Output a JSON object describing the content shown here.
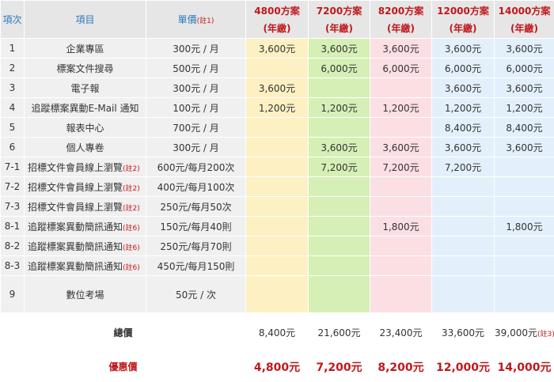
{
  "header": {
    "no": "項次",
    "item": "項目",
    "price": "單價",
    "price_note": "(註1)",
    "plans": [
      {
        "name": "4800方案",
        "sub": "(年繳)"
      },
      {
        "name": "7200方案",
        "sub": "(年繳)"
      },
      {
        "name": "8200方案",
        "sub": "(年繳)"
      },
      {
        "name": "12000方案",
        "sub": "(年繳)"
      },
      {
        "name": "14000方案",
        "sub": "(年繳)"
      }
    ]
  },
  "rows": [
    {
      "no": "1",
      "item": "企業專區",
      "note": "",
      "price": "300元 / 月",
      "cells": [
        "3,600元",
        "3,600元",
        "3,600元",
        "3,600元",
        "3,600元"
      ]
    },
    {
      "no": "2",
      "item": "標案文件搜尋",
      "note": "",
      "price": "500元 / 月",
      "cells": [
        "",
        "6,000元",
        "6,000元",
        "6,000元",
        "6,000元"
      ]
    },
    {
      "no": "3",
      "item": "電子報",
      "note": "",
      "price": "300元 / 月",
      "cells": [
        "3,600元",
        "",
        "",
        "3,600元",
        "3,600元"
      ]
    },
    {
      "no": "4",
      "item": "追蹤標案異動E-Mail 通知",
      "note": "",
      "price": "100元 / 月",
      "cells": [
        "1,200元",
        "1,200元",
        "1,200元",
        "1,200元",
        "1,200元"
      ]
    },
    {
      "no": "5",
      "item": "報表中心",
      "note": "",
      "price": "700元 / 月",
      "cells": [
        "",
        "",
        "",
        "8,400元",
        "8,400元"
      ]
    },
    {
      "no": "6",
      "item": "個人專卷",
      "note": "",
      "price": "300元 / 月",
      "cells": [
        "",
        "3,600元",
        "3,600元",
        "3,600元",
        "3,600元"
      ]
    },
    {
      "no": "7-1",
      "item": "招標文件會員線上瀏覽",
      "note": "(註2)",
      "price": "600元/每月200次",
      "cells": [
        "",
        "7,200元",
        "7,200元",
        "7,200元",
        ""
      ]
    },
    {
      "no": "7-2",
      "item": "招標文件會員線上瀏覽",
      "note": "(註2)",
      "price": "400元/每月100次",
      "cells": [
        "",
        "",
        "",
        "",
        ""
      ]
    },
    {
      "no": "7-3",
      "item": "招標文件會員線上瀏覽",
      "note": "(註2)",
      "price": "250元/每月50次",
      "cells": [
        "",
        "",
        "",
        "",
        ""
      ]
    },
    {
      "no": "8-1",
      "item": "追蹤標案異動簡訊通知",
      "note": "(註6)",
      "price": "150元/每月40則",
      "cells": [
        "",
        "",
        "1,800元",
        "",
        "1,800元"
      ]
    },
    {
      "no": "8-2",
      "item": "追蹤標案異動簡訊通知",
      "note": "(註6)",
      "price": "250元/每月70則",
      "cells": [
        "",
        "",
        "",
        "",
        ""
      ]
    },
    {
      "no": "8-3",
      "item": "追蹤標案異動簡訊通知",
      "note": "(註6)",
      "price": "450元/每月150則",
      "cells": [
        "",
        "",
        "",
        "",
        ""
      ]
    },
    {
      "no": "9",
      "item": "數位考場",
      "note": "",
      "price": "50元 / 次",
      "cells": [
        "",
        "",
        "",
        "",
        ""
      ]
    }
  ],
  "total": {
    "label": "總價",
    "cells": [
      "8,400元",
      "21,600元",
      "23,400元",
      "33,600元",
      "39,000元"
    ],
    "last_note": "(註3)"
  },
  "promo": {
    "label": "優惠價",
    "cells": [
      "4,800元",
      "7,200元",
      "8,200元",
      "12,000元",
      "14,000元"
    ]
  },
  "colors": {
    "yellow": "#fdf0c3",
    "green": "#d6efb6",
    "pink": "#fcdfe3",
    "blue": "#e3f0fb",
    "header_gray": "#e6e6e6",
    "accent_red": "#c0181c",
    "accent_blue": "#2a78c2"
  }
}
